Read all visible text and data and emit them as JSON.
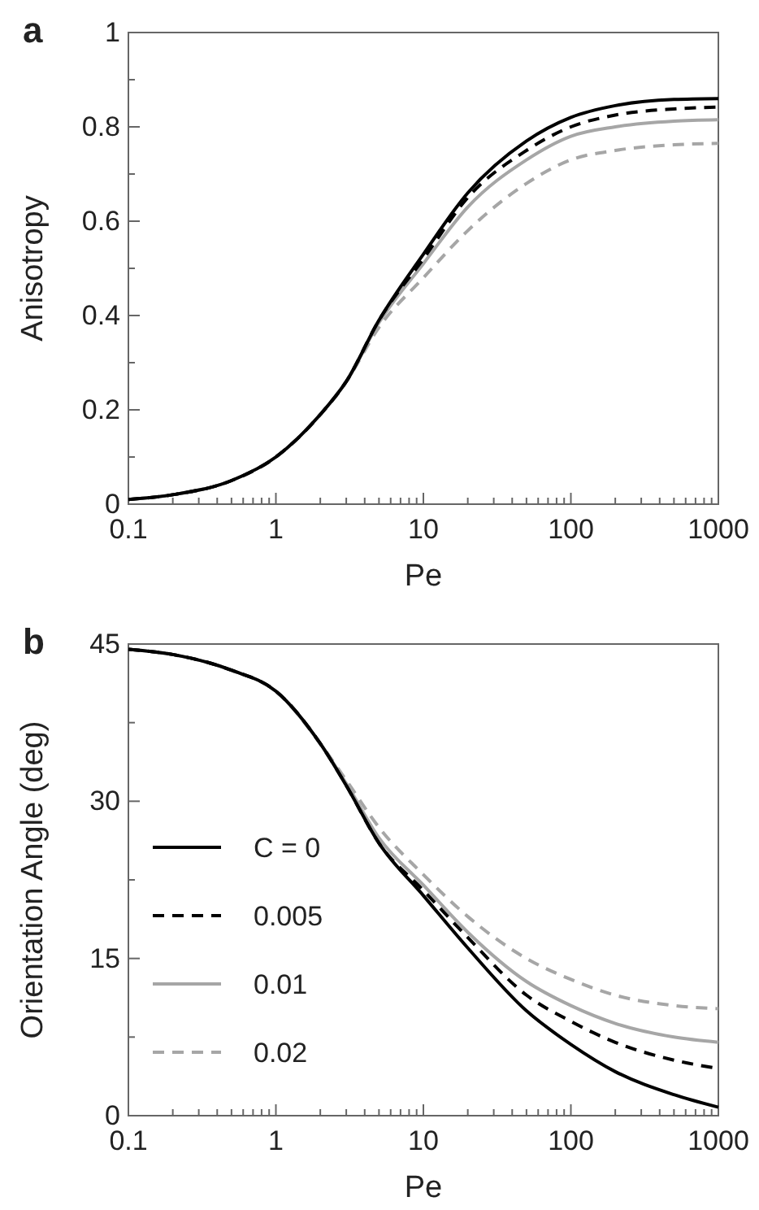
{
  "chart_data": [
    {
      "type": "line",
      "title": "a",
      "xlabel": "Pe",
      "ylabel": "Anisotropy",
      "log": "x",
      "xlim": [
        0.1,
        1000
      ],
      "ylim": [
        0,
        1
      ],
      "xticks": [
        0.1,
        {
          "value": 0.2,
          "label": null
        },
        {
          "value": 0.3,
          "label": null
        },
        {
          "value": 0.4,
          "label": null
        },
        {
          "value": 0.5,
          "label": null
        },
        {
          "value": 0.6,
          "label": null
        },
        {
          "value": 0.7,
          "label": null
        },
        {
          "value": 0.8,
          "label": null
        },
        {
          "value": 0.9,
          "label": null
        },
        1,
        {
          "value": 2,
          "label": null
        },
        {
          "value": 3,
          "label": null
        },
        {
          "value": 4,
          "label": null
        },
        {
          "value": 5,
          "label": null
        },
        {
          "value": 6,
          "label": null
        },
        {
          "value": 7,
          "label": null
        },
        {
          "value": 8,
          "label": null
        },
        {
          "value": 9,
          "label": null
        },
        10,
        {
          "value": 20,
          "label": null
        },
        {
          "value": 30,
          "label": null
        },
        {
          "value": 40,
          "label": null
        },
        {
          "value": 50,
          "label": null
        },
        {
          "value": 60,
          "label": null
        },
        {
          "value": 70,
          "label": null
        },
        {
          "value": 80,
          "label": null
        },
        {
          "value": 90,
          "label": null
        },
        100,
        {
          "value": 200,
          "label": null
        },
        {
          "value": 300,
          "label": null
        },
        {
          "value": 400,
          "label": null
        },
        {
          "value": 500,
          "label": null
        },
        {
          "value": 600,
          "label": null
        },
        {
          "value": 700,
          "label": null
        },
        {
          "value": 800,
          "label": null
        },
        {
          "value": 900,
          "label": null
        },
        1000
      ],
      "yticks": [
        0,
        {
          "value": 0.1,
          "label": null
        },
        0.2,
        {
          "value": 0.3,
          "label": null
        },
        0.4,
        {
          "value": 0.5,
          "label": null
        },
        0.6,
        {
          "value": 0.7,
          "label": null
        },
        0.8,
        {
          "value": 0.9,
          "label": null
        },
        1
      ],
      "x": [
        0.1,
        0.2,
        0.5,
        1,
        2,
        3,
        5,
        10,
        20,
        50,
        100,
        200,
        500,
        1000
      ],
      "series": [
        {
          "color": "#000000",
          "line_style": "solid",
          "values": [
            0.01,
            0.02,
            0.05,
            0.1,
            0.19,
            0.26,
            0.39,
            0.53,
            0.66,
            0.77,
            0.82,
            0.845,
            0.858,
            0.86
          ]
        },
        {
          "color": "#000000",
          "line_style": "dashed",
          "values": [
            0.01,
            0.02,
            0.05,
            0.1,
            0.19,
            0.26,
            0.39,
            0.52,
            0.65,
            0.75,
            0.8,
            0.825,
            0.838,
            0.842
          ]
        },
        {
          "color": "#a6a6a6",
          "line_style": "solid",
          "values": [
            0.01,
            0.02,
            0.05,
            0.1,
            0.19,
            0.26,
            0.385,
            0.51,
            0.63,
            0.73,
            0.78,
            0.8,
            0.812,
            0.815
          ]
        },
        {
          "color": "#a6a6a6",
          "line_style": "dashed",
          "values": [
            0.01,
            0.02,
            0.05,
            0.1,
            0.19,
            0.26,
            0.375,
            0.48,
            0.58,
            0.68,
            0.73,
            0.75,
            0.762,
            0.765
          ]
        }
      ]
    },
    {
      "type": "line",
      "title": "b",
      "xlabel": "Pe",
      "ylabel": "Orientation Angle (deg)",
      "log": "x",
      "xlim": [
        0.1,
        1000
      ],
      "ylim": [
        0,
        45
      ],
      "legend": "left",
      "xticks": [
        0.1,
        {
          "value": 0.2,
          "label": null
        },
        {
          "value": 0.3,
          "label": null
        },
        {
          "value": 0.4,
          "label": null
        },
        {
          "value": 0.5,
          "label": null
        },
        {
          "value": 0.6,
          "label": null
        },
        {
          "value": 0.7,
          "label": null
        },
        {
          "value": 0.8,
          "label": null
        },
        {
          "value": 0.9,
          "label": null
        },
        1,
        {
          "value": 2,
          "label": null
        },
        {
          "value": 3,
          "label": null
        },
        {
          "value": 4,
          "label": null
        },
        {
          "value": 5,
          "label": null
        },
        {
          "value": 6,
          "label": null
        },
        {
          "value": 7,
          "label": null
        },
        {
          "value": 8,
          "label": null
        },
        {
          "value": 9,
          "label": null
        },
        10,
        {
          "value": 20,
          "label": null
        },
        {
          "value": 30,
          "label": null
        },
        {
          "value": 40,
          "label": null
        },
        {
          "value": 50,
          "label": null
        },
        {
          "value": 60,
          "label": null
        },
        {
          "value": 70,
          "label": null
        },
        {
          "value": 80,
          "label": null
        },
        {
          "value": 90,
          "label": null
        },
        100,
        {
          "value": 200,
          "label": null
        },
        {
          "value": 300,
          "label": null
        },
        {
          "value": 400,
          "label": null
        },
        {
          "value": 500,
          "label": null
        },
        {
          "value": 600,
          "label": null
        },
        {
          "value": 700,
          "label": null
        },
        {
          "value": 800,
          "label": null
        },
        {
          "value": 900,
          "label": null
        },
        1000
      ],
      "yticks": [
        0,
        {
          "value": 7.5,
          "label": null
        },
        15,
        {
          "value": 22.5,
          "label": null
        },
        30,
        {
          "value": 37.5,
          "label": null
        },
        45
      ],
      "x": [
        0.1,
        0.2,
        0.5,
        1,
        2,
        3,
        5,
        10,
        20,
        50,
        100,
        200,
        500,
        1000
      ],
      "series": [
        {
          "name": "C = 0",
          "color": "#000000",
          "line_style": "solid",
          "values": [
            44.5,
            44,
            42.5,
            40.5,
            35.5,
            31.5,
            26,
            21,
            16,
            10,
            6.8,
            4.2,
            2,
            0.8
          ]
        },
        {
          "name": "0.005",
          "color": "#000000",
          "line_style": "dashed",
          "values": [
            44.5,
            44,
            42.5,
            40.5,
            35.5,
            31.5,
            26,
            21.5,
            17,
            11.5,
            9,
            7,
            5.3,
            4.5
          ]
        },
        {
          "name": "0.01",
          "color": "#a6a6a6",
          "line_style": "solid",
          "values": [
            44.5,
            44,
            42.5,
            40.5,
            35.5,
            31.7,
            26.5,
            22,
            17.5,
            12.8,
            10.5,
            8.8,
            7.5,
            7
          ]
        },
        {
          "name": "0.02",
          "color": "#a6a6a6",
          "line_style": "dashed",
          "values": [
            44.5,
            44,
            42.5,
            40.5,
            35.5,
            32,
            27.5,
            23,
            19,
            15,
            13,
            11.5,
            10.5,
            10.2
          ]
        }
      ]
    }
  ]
}
